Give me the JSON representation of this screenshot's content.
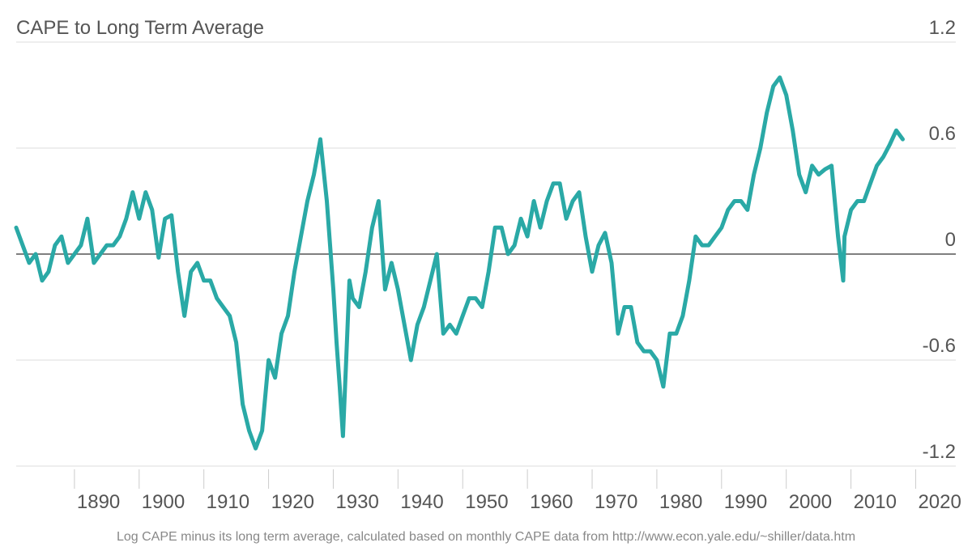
{
  "chart_data": {
    "type": "line",
    "title": "CAPE to Long Term Average",
    "note": "Log CAPE minus its long term average, calculated based on monthly CAPE data from http://www.econ.yale.edu/~shiller/data.htm",
    "x": [
      1881,
      1882,
      1883,
      1884,
      1885,
      1886,
      1887,
      1888,
      1889,
      1890,
      1891,
      1892,
      1893,
      1894,
      1895,
      1896,
      1897,
      1898,
      1899,
      1900,
      1901,
      1902,
      1903,
      1904,
      1905,
      1906,
      1907,
      1908,
      1909,
      1910,
      1911,
      1912,
      1913,
      1914,
      1915,
      1916,
      1917,
      1918,
      1919,
      1920,
      1921,
      1922,
      1923,
      1924,
      1925,
      1926,
      1927,
      1928,
      1929,
      1930,
      1930.5,
      1931,
      1931.5,
      1932,
      1932.5,
      1933,
      1934,
      1935,
      1936,
      1937,
      1938,
      1939,
      1940,
      1941,
      1942,
      1943,
      1944,
      1945,
      1946,
      1947,
      1948,
      1949,
      1950,
      1951,
      1952,
      1953,
      1954,
      1955,
      1956,
      1957,
      1958,
      1959,
      1960,
      1961,
      1962,
      1963,
      1964,
      1965,
      1966,
      1967,
      1968,
      1969,
      1970,
      1971,
      1972,
      1973,
      1974,
      1975,
      1976,
      1977,
      1978,
      1979,
      1980,
      1981,
      1982,
      1983,
      1984,
      1985,
      1986,
      1987,
      1988,
      1989,
      1990,
      1991,
      1992,
      1993,
      1994,
      1995,
      1996,
      1997,
      1998,
      1999,
      2000,
      2001,
      2002,
      2003,
      2004,
      2005,
      2006,
      2007,
      2008,
      2008.8,
      2009,
      2010,
      2011,
      2012,
      2013,
      2014,
      2015,
      2016,
      2017,
      2018
    ],
    "series": [
      {
        "name": "CAPE to Long Term Average",
        "color": "#2aa9a6",
        "values": [
          0.15,
          0.05,
          -0.05,
          0.0,
          -0.15,
          -0.1,
          0.05,
          0.1,
          -0.05,
          0.0,
          0.05,
          0.2,
          -0.05,
          0.0,
          0.05,
          0.05,
          0.1,
          0.2,
          0.35,
          0.2,
          0.35,
          0.25,
          -0.02,
          0.2,
          0.22,
          -0.1,
          -0.35,
          -0.1,
          -0.05,
          -0.15,
          -0.15,
          -0.25,
          -0.3,
          -0.35,
          -0.5,
          -0.85,
          -1.0,
          -1.1,
          -1.0,
          -0.6,
          -0.7,
          -0.45,
          -0.35,
          -0.1,
          0.1,
          0.3,
          0.45,
          0.65,
          0.3,
          -0.2,
          -0.5,
          -0.75,
          -1.03,
          -0.6,
          -0.15,
          -0.25,
          -0.3,
          -0.1,
          0.15,
          0.3,
          -0.2,
          -0.05,
          -0.2,
          -0.4,
          -0.6,
          -0.4,
          -0.3,
          -0.15,
          0.0,
          -0.45,
          -0.4,
          -0.45,
          -0.35,
          -0.25,
          -0.25,
          -0.3,
          -0.1,
          0.15,
          0.15,
          0.0,
          0.05,
          0.2,
          0.1,
          0.3,
          0.15,
          0.3,
          0.4,
          0.4,
          0.2,
          0.3,
          0.35,
          0.1,
          -0.1,
          0.05,
          0.12,
          -0.05,
          -0.45,
          -0.3,
          -0.3,
          -0.5,
          -0.55,
          -0.55,
          -0.6,
          -0.75,
          -0.45,
          -0.45,
          -0.35,
          -0.15,
          0.1,
          0.05,
          0.05,
          0.1,
          0.15,
          0.25,
          0.3,
          0.3,
          0.25,
          0.45,
          0.6,
          0.8,
          0.95,
          1.0,
          0.9,
          0.7,
          0.45,
          0.35,
          0.5,
          0.45,
          0.48,
          0.5,
          0.1,
          -0.15,
          0.1,
          0.25,
          0.3,
          0.3,
          0.4,
          0.5,
          0.55,
          0.62,
          0.7,
          0.65
        ]
      }
    ],
    "xlim": [
      1881,
      2026.2
    ],
    "xticks": [
      1890,
      1900,
      1910,
      1920,
      1930,
      1940,
      1950,
      1960,
      1970,
      1980,
      1990,
      2000,
      2010,
      2020
    ],
    "ylim": [
      -1.2,
      1.2
    ],
    "yticks": [
      -1.2,
      -0.6,
      0,
      0.6,
      1.2
    ],
    "grid": true
  }
}
